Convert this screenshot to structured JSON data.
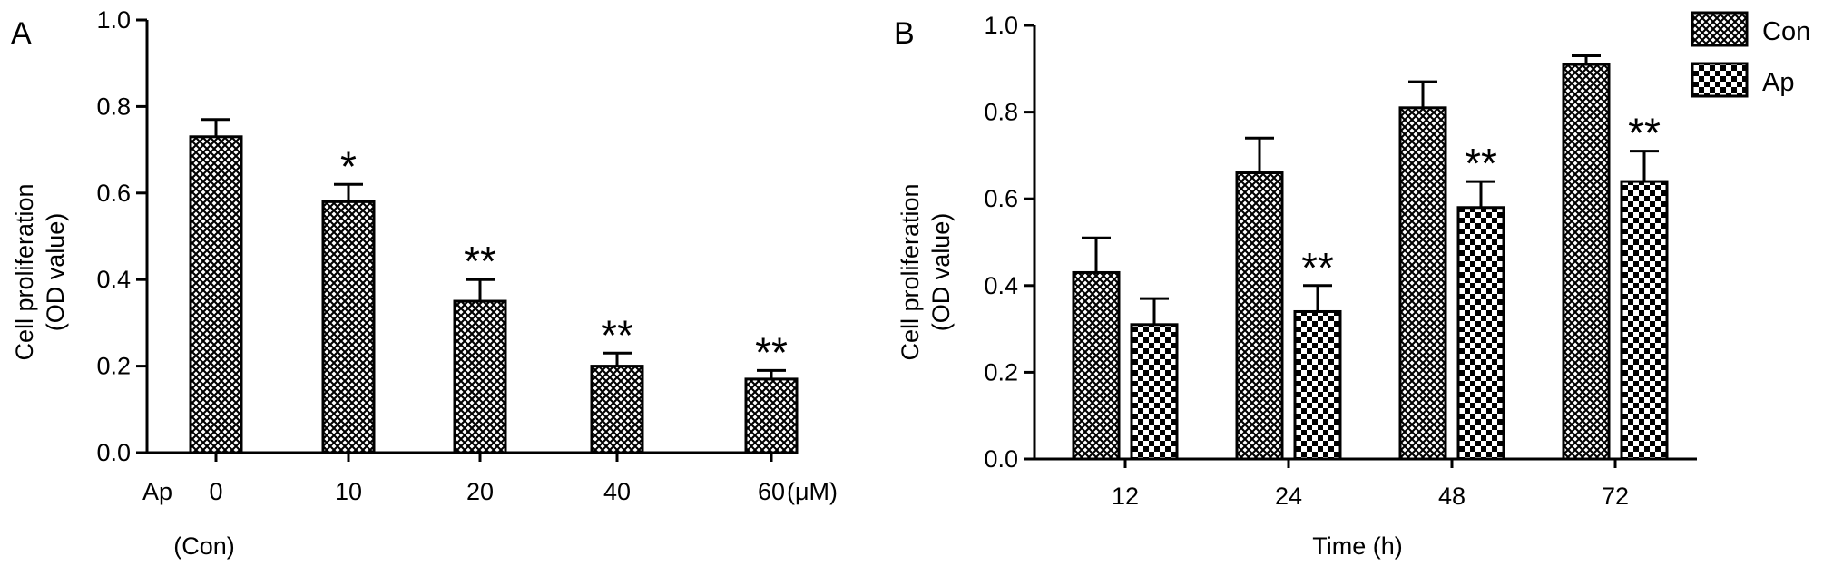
{
  "colors": {
    "ink": "#000000",
    "background": "#ffffff"
  },
  "panels": [
    {
      "letter": "A"
    },
    {
      "letter": "B"
    }
  ],
  "chart_data": [
    {
      "type": "bar",
      "panel": "A",
      "ylabel_line1": "Cell proliferation",
      "ylabel_line2": "(OD value)",
      "xlabel": "",
      "ylim": [
        0,
        1.0
      ],
      "yticks": [
        0.0,
        0.2,
        0.4,
        0.6,
        0.8,
        1.0
      ],
      "ytick_labels": [
        "0.0",
        "0.2",
        "0.4",
        "0.6",
        "0.8",
        "1.0"
      ],
      "row_label": "Ap",
      "unit_label": "(μM)",
      "sub_label": "(Con)",
      "categories": [
        "0",
        "10",
        "20",
        "40",
        "60"
      ],
      "series": [
        {
          "pattern": "crosshatch",
          "values": [
            0.73,
            0.58,
            0.35,
            0.2,
            0.17
          ],
          "errors": [
            0.04,
            0.04,
            0.05,
            0.03,
            0.02
          ],
          "significance": [
            "",
            "*",
            "**",
            "**",
            "**"
          ]
        }
      ]
    },
    {
      "type": "bar",
      "panel": "B",
      "ylabel_line1": "Cell proliferation",
      "ylabel_line2": "(OD value)",
      "xlabel": "Time (h)",
      "ylim": [
        0,
        1.0
      ],
      "yticks": [
        0.0,
        0.2,
        0.4,
        0.6,
        0.8,
        1.0
      ],
      "ytick_labels": [
        "0.0",
        "0.2",
        "0.4",
        "0.6",
        "0.8",
        "1.0"
      ],
      "categories": [
        "12",
        "24",
        "48",
        "72"
      ],
      "legend_position": "top-right",
      "series": [
        {
          "name": "Con",
          "pattern": "crosshatch",
          "values": [
            0.43,
            0.66,
            0.81,
            0.91
          ],
          "errors": [
            0.08,
            0.08,
            0.06,
            0.02
          ],
          "significance": [
            "",
            "",
            "",
            ""
          ]
        },
        {
          "name": "Ap",
          "pattern": "checker",
          "values": [
            0.31,
            0.34,
            0.58,
            0.64
          ],
          "errors": [
            0.06,
            0.06,
            0.06,
            0.07
          ],
          "significance": [
            "",
            "**",
            "**",
            "**"
          ]
        }
      ]
    }
  ]
}
